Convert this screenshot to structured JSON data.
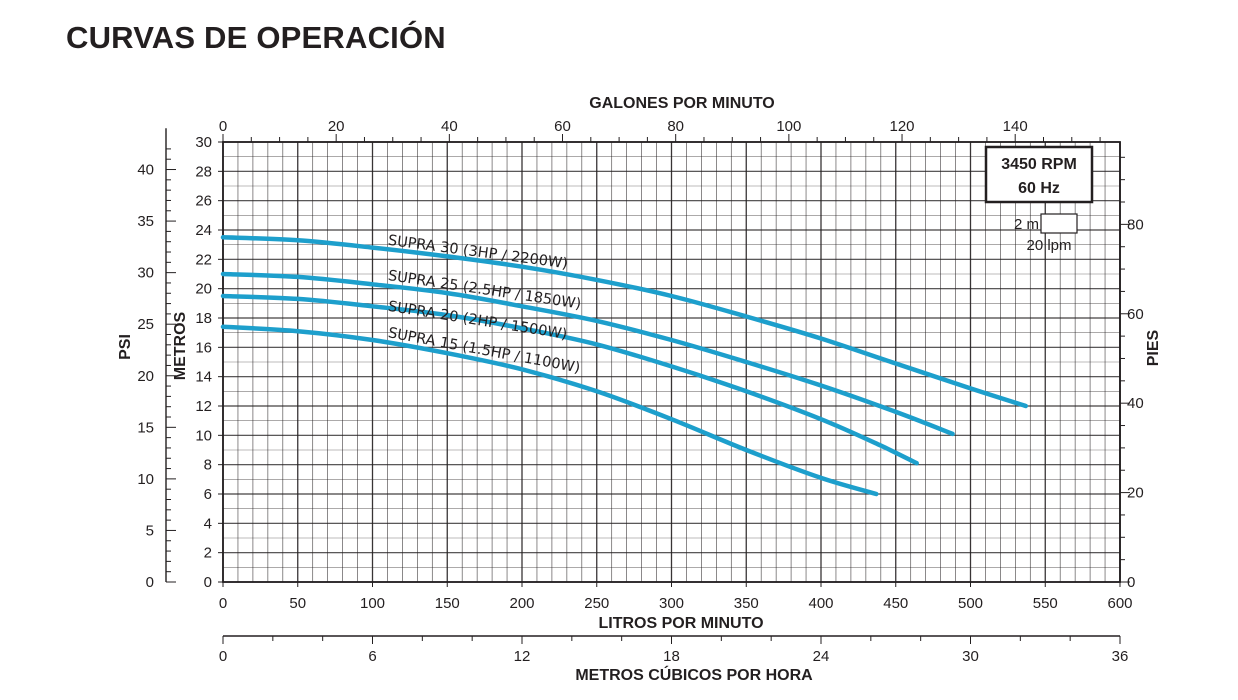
{
  "title": "CURVAS DE OPERACIÓN",
  "chart_data": {
    "type": "line",
    "grid": true,
    "xlabel_bottom": "LITROS POR MINUTO",
    "xlabel_top": "GALONES POR MINUTO",
    "xlabel_bottom2": "METROS CÚBICOS POR HORA",
    "ylabel_left_inner": "METROS",
    "ylabel_left_outer": "PSI",
    "ylabel_right": "PIES",
    "xlim": [
      0,
      600
    ],
    "ylim": [
      0,
      30
    ],
    "x_ticks": [
      "0",
      "50",
      "100",
      "150",
      "200",
      "250",
      "300",
      "350",
      "400",
      "450",
      "500",
      "550",
      "600"
    ],
    "top_ticks": [
      "0",
      "20",
      "40",
      "60",
      "80",
      "100",
      "120",
      "140"
    ],
    "bottom2_ticks": [
      "0",
      "6",
      "12",
      "18",
      "24",
      "30",
      "36"
    ],
    "y_ticks": [
      "0",
      "2",
      "4",
      "6",
      "8",
      "10",
      "12",
      "14",
      "16",
      "18",
      "20",
      "22",
      "24",
      "26",
      "28",
      "30"
    ],
    "psi_ticks": [
      "0",
      "5",
      "10",
      "15",
      "20",
      "25",
      "30",
      "35",
      "40"
    ],
    "pies_ticks": [
      "0",
      "20",
      "40",
      "60",
      "80"
    ],
    "legend_box": {
      "rpm": "3450 RPM",
      "hz": "60 Hz"
    },
    "scale_note": {
      "m": "2 m",
      "lpm": "20 lpm"
    },
    "series": [
      {
        "name": "SUPRA 30 (3HP / 2200W)",
        "x": [
          0,
          50,
          100,
          150,
          200,
          250,
          300,
          350,
          400,
          450,
          500,
          537
        ],
        "y": [
          23.5,
          23.3,
          22.8,
          22.2,
          21.5,
          20.6,
          19.5,
          18.1,
          16.6,
          14.9,
          13.2,
          12.0
        ]
      },
      {
        "name": "SUPRA 25 (2.5HP / 1850W)",
        "x": [
          0,
          50,
          100,
          150,
          200,
          250,
          300,
          350,
          400,
          450,
          488
        ],
        "y": [
          21.0,
          20.8,
          20.3,
          19.7,
          18.8,
          17.8,
          16.5,
          15.0,
          13.4,
          11.6,
          10.1
        ]
      },
      {
        "name": "SUPRA 20 (2HP / 1500W)",
        "x": [
          0,
          50,
          100,
          150,
          200,
          250,
          300,
          350,
          400,
          440,
          464
        ],
        "y": [
          19.5,
          19.3,
          18.8,
          18.2,
          17.3,
          16.2,
          14.7,
          13.0,
          11.1,
          9.3,
          8.1
        ]
      },
      {
        "name": "SUPRA 15 (1.5HP / 1100W)",
        "x": [
          0,
          50,
          100,
          150,
          200,
          250,
          300,
          350,
          400,
          437
        ],
        "y": [
          17.4,
          17.1,
          16.5,
          15.6,
          14.5,
          13.0,
          11.1,
          9.0,
          7.1,
          6.0
        ]
      }
    ],
    "line_color": "#1d9fcc",
    "grid_color": "#231f20"
  }
}
